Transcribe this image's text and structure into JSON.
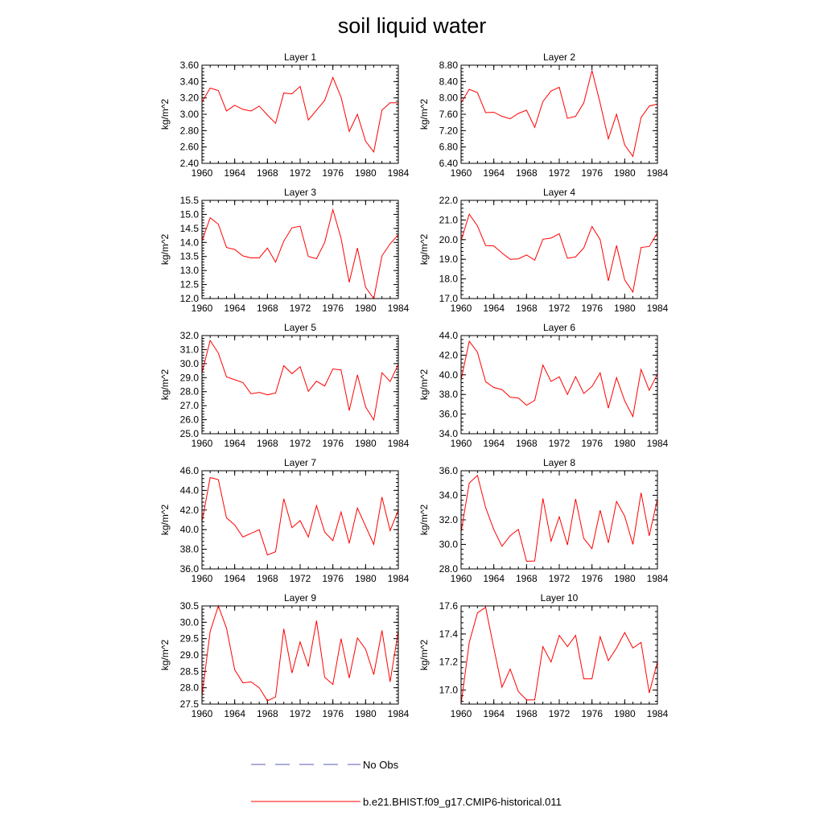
{
  "figure": {
    "title": "soil liquid water",
    "legend": {
      "obs_label": "No Obs",
      "obs_color": "#5a5ab4",
      "model_label": "b.e21.BHIST.f09_g17.CMIP6-historical.011",
      "model_color": "#ff0000"
    }
  },
  "chart_data": [
    {
      "type": "line",
      "title": "Layer 1",
      "ylabel": "kg/m^2",
      "x": [
        1960,
        1961,
        1962,
        1963,
        1964,
        1965,
        1966,
        1967,
        1968,
        1969,
        1970,
        1971,
        1972,
        1973,
        1974,
        1975,
        1976,
        1977,
        1978,
        1979,
        1980,
        1981,
        1982,
        1983,
        1984
      ],
      "xlim": [
        1960,
        1984
      ],
      "xticks": [
        "1960",
        "1964",
        "1968",
        "1972",
        "1976",
        "1980",
        "1984"
      ],
      "ylim": [
        2.4,
        3.6
      ],
      "yticks": [
        "2.40",
        "2.60",
        "2.80",
        "3.00",
        "3.20",
        "3.40",
        "3.60"
      ],
      "series": [
        {
          "values": [
            3.15,
            3.32,
            3.29,
            3.04,
            3.11,
            3.06,
            3.04,
            3.1,
            2.99,
            2.89,
            3.26,
            3.25,
            3.34,
            2.93,
            3.05,
            3.17,
            3.45,
            3.21,
            2.79,
            3.0,
            2.67,
            2.54,
            3.05,
            3.14,
            3.14
          ]
        }
      ]
    },
    {
      "type": "line",
      "title": "Layer 2",
      "ylabel": "kg/m^2",
      "x": [
        1960,
        1961,
        1962,
        1963,
        1964,
        1965,
        1966,
        1967,
        1968,
        1969,
        1970,
        1971,
        1972,
        1973,
        1974,
        1975,
        1976,
        1977,
        1978,
        1979,
        1980,
        1981,
        1982,
        1983,
        1984
      ],
      "xlim": [
        1960,
        1984
      ],
      "xticks": [
        "1960",
        "1964",
        "1968",
        "1972",
        "1976",
        "1980",
        "1984"
      ],
      "ylim": [
        6.4,
        8.8
      ],
      "yticks": [
        "6.40",
        "6.80",
        "7.20",
        "7.60",
        "8.00",
        "8.40",
        "8.80"
      ],
      "series": [
        {
          "values": [
            7.88,
            8.21,
            8.13,
            7.64,
            7.65,
            7.55,
            7.49,
            7.62,
            7.7,
            7.28,
            7.91,
            8.17,
            8.26,
            7.5,
            7.55,
            7.88,
            8.67,
            7.87,
            7.0,
            7.6,
            6.85,
            6.57,
            7.52,
            7.8,
            7.85
          ]
        }
      ]
    },
    {
      "type": "line",
      "title": "Layer 3",
      "ylabel": "kg/m^2",
      "x": [
        1960,
        1961,
        1962,
        1963,
        1964,
        1965,
        1966,
        1967,
        1968,
        1969,
        1970,
        1971,
        1972,
        1973,
        1974,
        1975,
        1976,
        1977,
        1978,
        1979,
        1980,
        1981,
        1982,
        1983,
        1984
      ],
      "xlim": [
        1960,
        1984
      ],
      "xticks": [
        "1960",
        "1964",
        "1968",
        "1972",
        "1976",
        "1980",
        "1984"
      ],
      "ylim": [
        12.0,
        15.5
      ],
      "yticks": [
        "12.0",
        "12.5",
        "13.0",
        "13.5",
        "14.0",
        "14.5",
        "15.0",
        "15.5"
      ],
      "series": [
        {
          "values": [
            14.05,
            14.88,
            14.65,
            13.82,
            13.75,
            13.52,
            13.45,
            13.45,
            13.8,
            13.3,
            14.05,
            14.52,
            14.58,
            13.5,
            13.42,
            14.0,
            15.17,
            14.15,
            12.58,
            13.8,
            12.4,
            12.0,
            13.52,
            13.95,
            14.28
          ]
        }
      ]
    },
    {
      "type": "line",
      "title": "Layer 4",
      "ylabel": "kg/m^2",
      "x": [
        1960,
        1961,
        1962,
        1963,
        1964,
        1965,
        1966,
        1967,
        1968,
        1969,
        1970,
        1971,
        1972,
        1973,
        1974,
        1975,
        1976,
        1977,
        1978,
        1979,
        1980,
        1981,
        1982,
        1983,
        1984
      ],
      "xlim": [
        1960,
        1984
      ],
      "xticks": [
        "1960",
        "1964",
        "1968",
        "1972",
        "1976",
        "1980",
        "1984"
      ],
      "ylim": [
        17.0,
        22.0
      ],
      "yticks": [
        "17.0",
        "18.0",
        "19.0",
        "20.0",
        "21.0",
        "22.0"
      ],
      "series": [
        {
          "values": [
            19.95,
            21.3,
            20.7,
            19.7,
            19.68,
            19.32,
            19.0,
            19.02,
            19.22,
            18.95,
            20.02,
            20.08,
            20.3,
            19.05,
            19.12,
            19.58,
            20.67,
            20.0,
            17.9,
            19.7,
            17.95,
            17.33,
            19.6,
            19.65,
            20.35
          ]
        }
      ]
    },
    {
      "type": "line",
      "title": "Layer 5",
      "ylabel": "kg/m^2",
      "x": [
        1960,
        1961,
        1962,
        1963,
        1964,
        1965,
        1966,
        1967,
        1968,
        1969,
        1970,
        1971,
        1972,
        1973,
        1974,
        1975,
        1976,
        1977,
        1978,
        1979,
        1980,
        1981,
        1982,
        1983,
        1984
      ],
      "xlim": [
        1960,
        1984
      ],
      "xticks": [
        "1960",
        "1964",
        "1968",
        "1972",
        "1976",
        "1980",
        "1984"
      ],
      "ylim": [
        25.0,
        32.0
      ],
      "yticks": [
        "25.0",
        "26.0",
        "27.0",
        "28.0",
        "29.0",
        "30.0",
        "31.0",
        "32.0"
      ],
      "series": [
        {
          "values": [
            29.35,
            31.65,
            30.75,
            29.05,
            28.85,
            28.65,
            27.85,
            27.95,
            27.78,
            27.9,
            29.85,
            29.28,
            29.78,
            28.02,
            28.75,
            28.4,
            29.62,
            29.55,
            26.65,
            29.2,
            26.92,
            25.98,
            29.35,
            28.72,
            29.95
          ]
        }
      ]
    },
    {
      "type": "line",
      "title": "Layer 6",
      "ylabel": "kg/m^2",
      "x": [
        1960,
        1961,
        1962,
        1963,
        1964,
        1965,
        1966,
        1967,
        1968,
        1969,
        1970,
        1971,
        1972,
        1973,
        1974,
        1975,
        1976,
        1977,
        1978,
        1979,
        1980,
        1981,
        1982,
        1983,
        1984
      ],
      "xlim": [
        1960,
        1984
      ],
      "xticks": [
        "1960",
        "1964",
        "1968",
        "1972",
        "1976",
        "1980",
        "1984"
      ],
      "ylim": [
        34.0,
        44.0
      ],
      "yticks": [
        "34.0",
        "36.0",
        "38.0",
        "40.0",
        "42.0",
        "44.0"
      ],
      "series": [
        {
          "values": [
            39.5,
            43.42,
            42.3,
            39.3,
            38.7,
            38.5,
            37.72,
            37.65,
            36.9,
            37.4,
            41.0,
            39.32,
            39.8,
            38.0,
            39.82,
            38.1,
            38.82,
            40.2,
            36.6,
            39.72,
            37.35,
            35.75,
            40.55,
            38.42,
            40.08
          ]
        }
      ]
    },
    {
      "type": "line",
      "title": "Layer 7",
      "ylabel": "kg/m^2",
      "x": [
        1960,
        1961,
        1962,
        1963,
        1964,
        1965,
        1966,
        1967,
        1968,
        1969,
        1970,
        1971,
        1972,
        1973,
        1974,
        1975,
        1976,
        1977,
        1978,
        1979,
        1980,
        1981,
        1982,
        1983,
        1984
      ],
      "xlim": [
        1960,
        1984
      ],
      "xticks": [
        "1960",
        "1964",
        "1968",
        "1972",
        "1976",
        "1980",
        "1984"
      ],
      "ylim": [
        36.0,
        46.0
      ],
      "yticks": [
        "36.0",
        "38.0",
        "40.0",
        "42.0",
        "44.0",
        "46.0"
      ],
      "series": [
        {
          "values": [
            40.8,
            45.3,
            45.1,
            41.2,
            40.48,
            39.25,
            39.62,
            40.0,
            37.42,
            37.75,
            43.15,
            40.2,
            40.92,
            39.25,
            42.45,
            39.75,
            38.88,
            41.8,
            38.6,
            42.2,
            40.35,
            38.5,
            43.32,
            39.9,
            42.0
          ]
        }
      ]
    },
    {
      "type": "line",
      "title": "Layer 8",
      "ylabel": "kg/m^2",
      "x": [
        1960,
        1961,
        1962,
        1963,
        1964,
        1965,
        1966,
        1967,
        1968,
        1969,
        1970,
        1971,
        1972,
        1973,
        1974,
        1975,
        1976,
        1977,
        1978,
        1979,
        1980,
        1981,
        1982,
        1983,
        1984
      ],
      "xlim": [
        1960,
        1984
      ],
      "xticks": [
        "1960",
        "1964",
        "1968",
        "1972",
        "1976",
        "1980",
        "1984"
      ],
      "ylim": [
        28.0,
        36.0
      ],
      "yticks": [
        "28.0",
        "30.0",
        "32.0",
        "34.0",
        "36.0"
      ],
      "series": [
        {
          "values": [
            31.0,
            35.0,
            35.62,
            33.0,
            31.2,
            29.85,
            30.7,
            31.22,
            28.62,
            28.65,
            33.75,
            30.25,
            32.25,
            29.95,
            33.7,
            30.48,
            29.65,
            32.78,
            30.12,
            33.5,
            32.3,
            30.0,
            34.2,
            30.7,
            33.7
          ]
        }
      ]
    },
    {
      "type": "line",
      "title": "Layer 9",
      "ylabel": "kg/m^2",
      "x": [
        1960,
        1961,
        1962,
        1963,
        1964,
        1965,
        1966,
        1967,
        1968,
        1969,
        1970,
        1971,
        1972,
        1973,
        1974,
        1975,
        1976,
        1977,
        1978,
        1979,
        1980,
        1981,
        1982,
        1983,
        1984
      ],
      "xlim": [
        1960,
        1984
      ],
      "xticks": [
        "1960",
        "1964",
        "1968",
        "1972",
        "1976",
        "1980",
        "1984"
      ],
      "ylim": [
        27.5,
        30.5
      ],
      "yticks": [
        "27.5",
        "28.0",
        "28.5",
        "29.0",
        "29.5",
        "30.0",
        "30.5"
      ],
      "series": [
        {
          "values": [
            27.75,
            29.72,
            30.5,
            29.82,
            28.55,
            28.15,
            28.18,
            28.0,
            27.6,
            27.72,
            29.8,
            28.45,
            29.4,
            28.65,
            30.05,
            28.32,
            28.1,
            29.5,
            28.3,
            29.52,
            29.18,
            28.4,
            29.75,
            28.18,
            29.75
          ]
        }
      ]
    },
    {
      "type": "line",
      "title": "Layer 10",
      "ylabel": "kg/m^2",
      "x": [
        1960,
        1961,
        1962,
        1963,
        1964,
        1965,
        1966,
        1967,
        1968,
        1969,
        1970,
        1971,
        1972,
        1973,
        1974,
        1975,
        1976,
        1977,
        1978,
        1979,
        1980,
        1981,
        1982,
        1983,
        1984
      ],
      "xlim": [
        1960,
        1984
      ],
      "xticks": [
        "1960",
        "1964",
        "1968",
        "1972",
        "1976",
        "1980",
        "1984"
      ],
      "ylim": [
        16.9,
        17.6
      ],
      "yticks": [
        "17.0",
        "17.2",
        "17.4",
        "17.6"
      ],
      "series": [
        {
          "values": [
            16.9,
            17.34,
            17.55,
            17.59,
            17.3,
            17.02,
            17.15,
            16.99,
            16.93,
            16.93,
            17.31,
            17.2,
            17.39,
            17.31,
            17.39,
            17.08,
            17.08,
            17.38,
            17.21,
            17.3,
            17.41,
            17.3,
            17.34,
            16.98,
            17.2
          ]
        }
      ]
    }
  ]
}
